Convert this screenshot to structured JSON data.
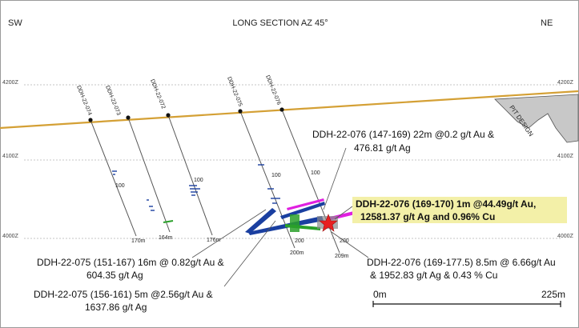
{
  "header": {
    "left": "SW",
    "title": "LONG SECTION AZ 45°",
    "right": "NE"
  },
  "elevations": {
    "top": "4200Z",
    "middle": "4100Z",
    "bottom": "4000Z"
  },
  "pit_label": "PIT DESIGN",
  "holes": [
    {
      "id": "DDH-22-074",
      "depth": "170m",
      "marker": "100"
    },
    {
      "id": "DDH-22-073",
      "depth": "164m",
      "marker": ""
    },
    {
      "id": "DDH-22-072",
      "depth": "176m",
      "marker": "100"
    },
    {
      "id": "DDH-22-075",
      "depth": "200m",
      "marker": "100",
      "marker2": "200"
    },
    {
      "id": "DDH-22-076",
      "depth": "209m",
      "marker": "100",
      "marker2": "200"
    }
  ],
  "annotations": {
    "a1_line1": "DDH-22-076 (147-169) 22m @0.2 g/t Au &",
    "a1_line2": "476.81 g/t Ag",
    "a2_line1": "DDH-22-076 (169-170) 1m @44.49g/t Au,",
    "a2_line2": "12581.37 g/t Ag and 0.96% Cu",
    "a3_line1": "DDH-22-075 (151-167) 16m @ 0.82g/t Au &",
    "a3_line2": "604.35 g/t Ag",
    "a4_line1": "DDH-22-075 (156-161) 5m @2.56g/t Au &",
    "a4_line2": "1637.86 g/t Ag",
    "a5_line1": "DDH-22-076 (169-177.5) 8.5m @ 6.66g/t Au",
    "a5_line2": "& 1952.83 g/t Ag & 0.43 % Cu"
  },
  "scale": {
    "start": "0m",
    "end": "225m"
  },
  "colors": {
    "topography": "#d4a035",
    "pit_fill": "#c8c8c8",
    "intercept_blue": "#1a3fa0",
    "intercept_green": "#2aa02a",
    "intercept_magenta": "#e020e0",
    "highlight_bg": "#f3f0a8",
    "star": "#e82020"
  }
}
